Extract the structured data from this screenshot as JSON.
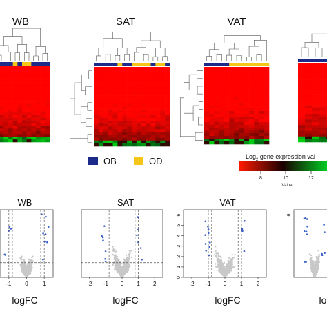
{
  "colors": {
    "ob": "#1c2a8a",
    "od": "#f5c518",
    "heat_high": "#ff1a00",
    "heat_mid": "#1a0000",
    "heat_low": "#00cc22",
    "point": "#c8c8c8",
    "sig_point": "#3a62c8"
  },
  "heatmap_titles": [
    "WB",
    "SAT",
    "VAT"
  ],
  "legend": {
    "groups": [
      {
        "key": "ob",
        "label": "OB"
      },
      {
        "key": "od",
        "label": "OD"
      }
    ],
    "colorkey_title": "Log",
    "colorkey_subscript": "2",
    "colorkey_title_rest": " gene expression val",
    "colorkey_ticks": [
      "8",
      "10",
      "12"
    ],
    "colorkey_axis_label": "Value"
  },
  "chart_data": [
    {
      "type": "scatter",
      "title": "WB",
      "xlabel": "logFC",
      "x_ticks": [
        -1,
        0,
        1
      ],
      "xlim": [
        -1.5,
        1.5
      ],
      "ylim": [
        0,
        6
      ],
      "y_ticks": [],
      "vlines": [
        -1,
        -0.8,
        0.8,
        1
      ],
      "hline": 1.3
    },
    {
      "type": "scatter",
      "title": "SAT",
      "xlabel": "logFC",
      "x_ticks": [
        -2,
        -1,
        0,
        1,
        2
      ],
      "xlim": [
        -2.5,
        2.5
      ],
      "ylim": [
        0,
        6
      ],
      "y_ticks": [],
      "vlines": [
        -1,
        -0.8,
        0.8,
        1
      ],
      "hline": 1.3
    },
    {
      "type": "scatter",
      "title": "VAT",
      "xlabel": "logFC",
      "x_ticks": [
        -2,
        -1,
        0,
        1,
        2
      ],
      "xlim": [
        -2.5,
        2.5
      ],
      "ylim": [
        0,
        6.5
      ],
      "y_ticks": [
        0,
        1,
        2,
        3,
        4,
        5,
        6
      ],
      "vlines": [
        -1,
        -0.8,
        0.8,
        1
      ],
      "hline": 1.3
    },
    {
      "type": "scatter",
      "title": "",
      "xlabel": "lo",
      "x_ticks": [],
      "xlim": [
        -2.5,
        2.5
      ],
      "ylim": [
        0,
        6.5
      ],
      "y_ticks": [
        6
      ],
      "vlines": [],
      "hline": 1.3
    }
  ]
}
